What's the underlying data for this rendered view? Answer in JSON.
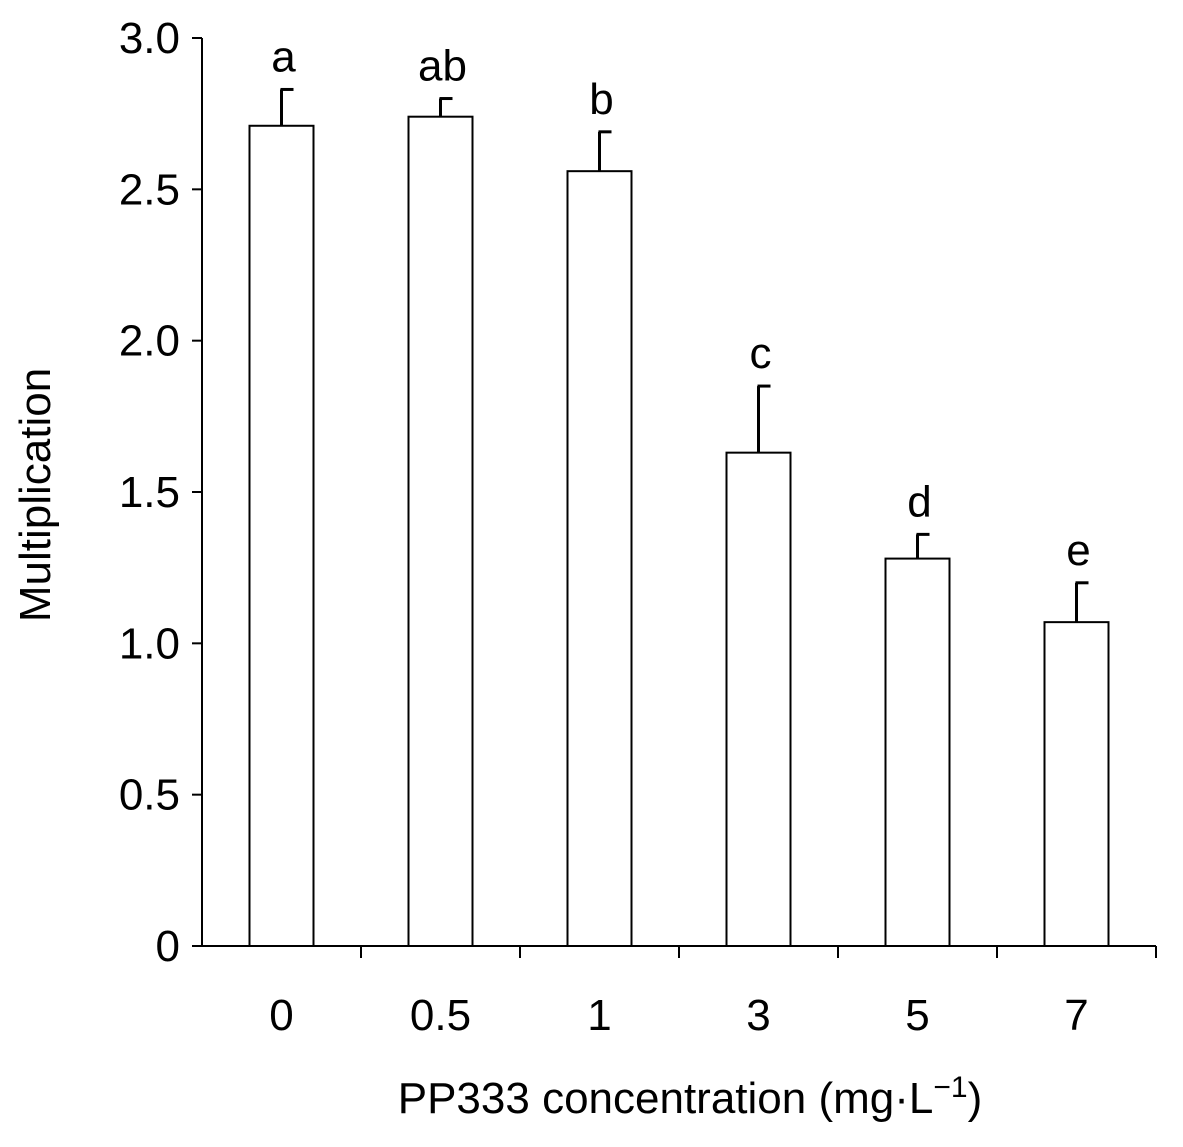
{
  "chart_data": {
    "type": "bar",
    "title": "",
    "xlabel": "PP333 concentration (mg·L",
    "xlabel_superscript": "−1",
    "xlabel_suffix": ")",
    "ylabel": "Multiplication",
    "categories": [
      "0",
      "0.5",
      "1",
      "3",
      "5",
      "7"
    ],
    "values": [
      2.71,
      2.74,
      2.56,
      1.63,
      1.28,
      1.07
    ],
    "errors": [
      0.12,
      0.06,
      0.13,
      0.22,
      0.08,
      0.13
    ],
    "significance_labels": [
      "a",
      "ab",
      "b",
      "c",
      "d",
      "e"
    ],
    "ylim": [
      0,
      3.0
    ],
    "yticks": [
      0,
      0.5,
      1.0,
      1.5,
      2.0,
      2.5,
      3.0
    ],
    "ytick_labels": [
      "0",
      "0.5",
      "1.0",
      "1.5",
      "2.0",
      "2.5",
      "3.0"
    ],
    "bar_fill": "#ffffff",
    "bar_stroke": "#000000",
    "grid": false,
    "legend": "none"
  }
}
